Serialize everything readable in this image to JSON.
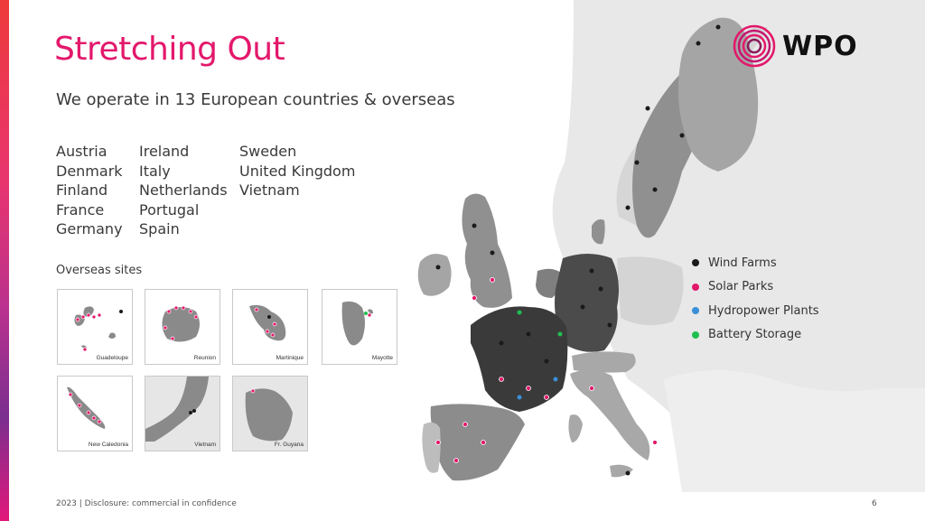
{
  "slide": {
    "title": "Stretching Out",
    "subtitle": "We operate in 13 European countries & overseas",
    "footer": "2023 | Disclosure: commercial in confidence",
    "page_number": "6",
    "accent_color": "#e3186b"
  },
  "logo": {
    "text": "WPO",
    "icon": "concentric-rings-logo"
  },
  "countries": {
    "col1": [
      "Austria",
      "Denmark",
      "Finland",
      "France",
      "Germany"
    ],
    "col2": [
      "Ireland",
      "Italy",
      "Netherlands",
      "Portugal",
      "Spain"
    ],
    "col3": [
      "Sweden",
      "United Kingdom",
      "Vietnam"
    ]
  },
  "overseas": {
    "label": "Overseas sites",
    "sites": [
      "Guadeloupe",
      "Reunion",
      "Martinique",
      "Mayotte",
      "New Caledonia",
      "Vietnam",
      "Fr. Guyana"
    ]
  },
  "legend": [
    {
      "label": "Wind Farms",
      "color": "#1a1a1a"
    },
    {
      "label": "Solar Parks",
      "color": "#e3186b"
    },
    {
      "label": "Hydropower Plants",
      "color": "#3a8fd8"
    },
    {
      "label": "Battery Storage",
      "color": "#1fbf4f"
    }
  ]
}
